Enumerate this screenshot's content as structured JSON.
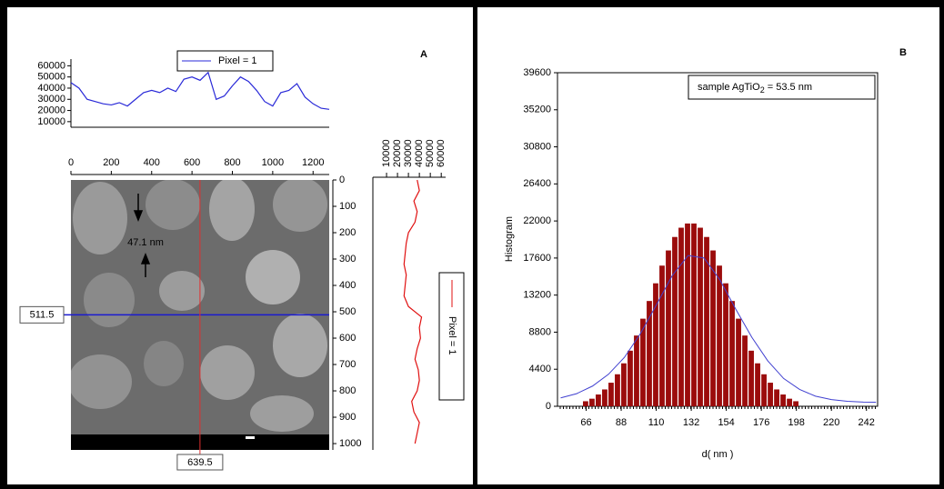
{
  "chart_data": [
    {
      "type": "line",
      "x": [
        0,
        40,
        80,
        120,
        160,
        200,
        240,
        280,
        320,
        360,
        400,
        440,
        480,
        520,
        560,
        600,
        640,
        680,
        720,
        760,
        800,
        840,
        880,
        920,
        960,
        1000,
        1040,
        1080,
        1120,
        1160,
        1200,
        1240,
        1280
      ],
      "series": [
        {
          "name": "Pixel = 1",
          "color": "#2a2ad8",
          "values": [
            45000,
            40000,
            30000,
            28000,
            26000,
            25000,
            27000,
            24000,
            30000,
            36000,
            38000,
            36000,
            40000,
            37000,
            48000,
            50000,
            47000,
            54000,
            30000,
            33000,
            42000,
            50000,
            46000,
            38000,
            28000,
            24000,
            36000,
            38000,
            44000,
            32000,
            26000,
            22000,
            21000
          ]
        }
      ],
      "xlim": [
        0,
        1280
      ],
      "ylim": [
        5000,
        66000
      ],
      "yticks": [
        10000,
        20000,
        30000,
        40000,
        50000,
        60000
      ]
    },
    {
      "type": "image",
      "panel_label": "A",
      "xlim": [
        0,
        1280
      ],
      "ylim": [
        0,
        1024
      ],
      "xticks": [
        0,
        200,
        400,
        600,
        800,
        1000,
        1200
      ],
      "yticks": [
        0,
        100,
        200,
        300,
        400,
        500,
        600,
        700,
        800,
        900,
        1000
      ],
      "crosshair": {
        "y": 511.5,
        "x": 639.5,
        "y_color": "#1a1ad0",
        "x_color": "#e03030"
      },
      "annotation": "47.1 nm"
    },
    {
      "type": "line",
      "orientation": "vertical",
      "y": [
        0,
        40,
        80,
        120,
        160,
        200,
        240,
        280,
        320,
        360,
        400,
        440,
        480,
        520,
        560,
        600,
        640,
        680,
        720,
        760,
        800,
        840,
        880,
        920,
        960,
        1000
      ],
      "series": [
        {
          "name": "Pixel = 1",
          "color": "#e01010",
          "values": [
            38000,
            40000,
            35000,
            38000,
            36000,
            30000,
            28000,
            27000,
            26000,
            28000,
            27000,
            26000,
            30000,
            42000,
            40000,
            41000,
            38000,
            36000,
            39000,
            40000,
            38000,
            33000,
            35000,
            40000,
            38000,
            36000
          ]
        }
      ],
      "xlim": [
        -2500,
        64000
      ],
      "xticks": [
        10000,
        20000,
        30000,
        40000,
        50000,
        60000
      ],
      "ylim": [
        0,
        1024
      ]
    },
    {
      "type": "histogram",
      "panel_label": "B",
      "bins": [
        64,
        68,
        72,
        76,
        80,
        84,
        88,
        92,
        96,
        100,
        104,
        108,
        112,
        116,
        120,
        124,
        128,
        132,
        136,
        140,
        144,
        148,
        152,
        156,
        160,
        164,
        168,
        172,
        176,
        180,
        184,
        188,
        192,
        196,
        200
      ],
      "values": [
        600,
        900,
        1400,
        2000,
        2800,
        3800,
        5100,
        6600,
        8400,
        10400,
        12500,
        14600,
        16700,
        18500,
        20100,
        21200,
        21700,
        21700,
        21200,
        20100,
        18500,
        16700,
        14600,
        12500,
        10400,
        8400,
        6600,
        5100,
        3800,
        2800,
        2000,
        1400,
        900,
        600
      ],
      "color": "#9b0c0c",
      "fit": {
        "color": "#4040d0",
        "x": [
          50,
          60,
          70,
          80,
          90,
          100,
          110,
          120,
          130,
          140,
          150,
          160,
          170,
          180,
          190,
          200,
          210,
          220,
          230,
          240,
          248
        ],
        "values": [
          1000,
          1500,
          2400,
          3800,
          5800,
          8600,
          12000,
          15500,
          17900,
          17600,
          15000,
          11500,
          8200,
          5400,
          3300,
          2000,
          1200,
          800,
          600,
          500,
          480
        ]
      },
      "xlim": [
        48,
        249
      ],
      "ylim": [
        0,
        39600
      ],
      "xticks": [
        66,
        88,
        110,
        132,
        154,
        176,
        198,
        220,
        242
      ],
      "yticks": [
        0,
        4400,
        8800,
        13200,
        17600,
        22000,
        26400,
        30800,
        35200,
        39600
      ],
      "xlabel": "d( nm )",
      "ylabel": "Histogram",
      "annotation": [
        "sample AgTiO",
        "2",
        " = 53.5 nm"
      ]
    }
  ]
}
